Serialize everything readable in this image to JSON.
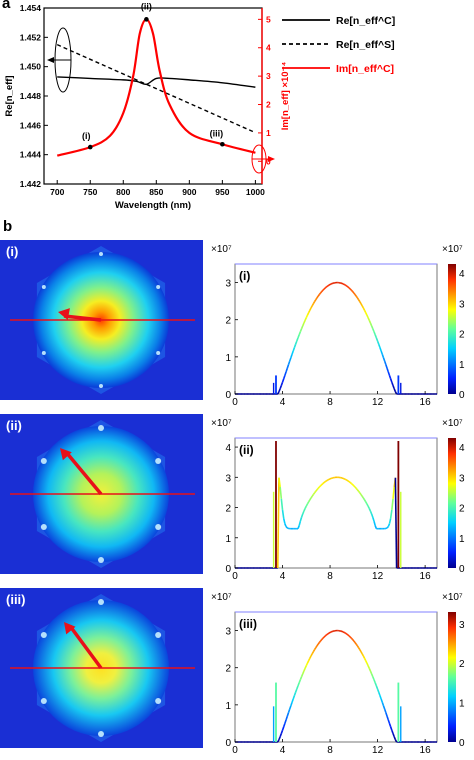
{
  "panel_a": {
    "letter": "a",
    "markers": [
      "(i)",
      "(ii)",
      "(iii)"
    ],
    "legend": [
      {
        "label": "Re[n_eff^C]",
        "color": "#000000",
        "style": "solid"
      },
      {
        "label": "Re[n_eff^S]",
        "color": "#000000",
        "style": "dashed"
      },
      {
        "label": "Im[n_eff^C]",
        "color": "#ff0000",
        "style": "solid"
      }
    ]
  },
  "panel_b": {
    "letter": "b",
    "rows": [
      {
        "tag": "(i)",
        "mult": "×10⁷",
        "yticks": [
          "0",
          "1",
          "2",
          "3"
        ],
        "cbticks": [
          "0",
          "1",
          "2",
          "3",
          "4"
        ]
      },
      {
        "tag": "(ii)",
        "mult": "×10⁷",
        "yticks": [
          "0",
          "1",
          "2",
          "3",
          "4"
        ],
        "cbticks": [
          "0",
          "1",
          "2",
          "3",
          "4"
        ]
      },
      {
        "tag": "(iii)",
        "mult": "×10⁷",
        "yticks": [
          "0",
          "1",
          "2",
          "3"
        ],
        "cbticks": [
          "0",
          "1",
          "2",
          "3"
        ]
      }
    ],
    "xticks": [
      "0",
      "4",
      "8",
      "12",
      "16"
    ]
  },
  "chart_data": {
    "type": "line",
    "xlabel": "Wavelength (nm)",
    "ylabel": "Re[n_eff]",
    "ylabel_right": "Im[n_eff] ×10⁻⁴",
    "xlim": [
      680,
      1010
    ],
    "ylim": [
      1.442,
      1.454
    ],
    "ylim_right": [
      -0.8,
      5.4
    ],
    "xticks": [
      "700",
      "750",
      "800",
      "850",
      "900",
      "950",
      "1000"
    ],
    "yticks": [
      "1.442",
      "1.444",
      "1.446",
      "1.448",
      "1.450",
      "1.452",
      "1.454"
    ],
    "yticks_right": [
      "0",
      "1",
      "2",
      "3",
      "4",
      "5"
    ],
    "series": [
      {
        "name": "Re[n_eff^C]",
        "axis": "left",
        "color": "#000000",
        "x": [
          700,
          750,
          800,
          820,
          835,
          850,
          870,
          900,
          950,
          1000
        ],
        "y": [
          1.4493,
          1.4492,
          1.4491,
          1.449,
          1.4488,
          1.4492,
          1.4492,
          1.4491,
          1.4489,
          1.4486
        ]
      },
      {
        "name": "Re[n_eff^S]",
        "axis": "left",
        "color": "#000000",
        "dashed": true,
        "x": [
          700,
          1000
        ],
        "y": [
          1.4515,
          1.4455
        ]
      },
      {
        "name": "Im[n_eff^C]",
        "axis": "right",
        "color": "#ff0000",
        "x": [
          700,
          750,
          780,
          800,
          815,
          825,
          835,
          845,
          855,
          870,
          900,
          950,
          1000
        ],
        "y": [
          0.2,
          0.5,
          0.9,
          1.7,
          3.0,
          4.5,
          5.0,
          4.5,
          3.2,
          2.0,
          1.0,
          0.6,
          0.3
        ]
      }
    ],
    "points": [
      {
        "label": "(i)",
        "x": 750,
        "y": 0.5
      },
      {
        "label": "(ii)",
        "x": 835,
        "y": 5.0
      },
      {
        "label": "(iii)",
        "x": 950,
        "y": 0.6
      }
    ]
  }
}
